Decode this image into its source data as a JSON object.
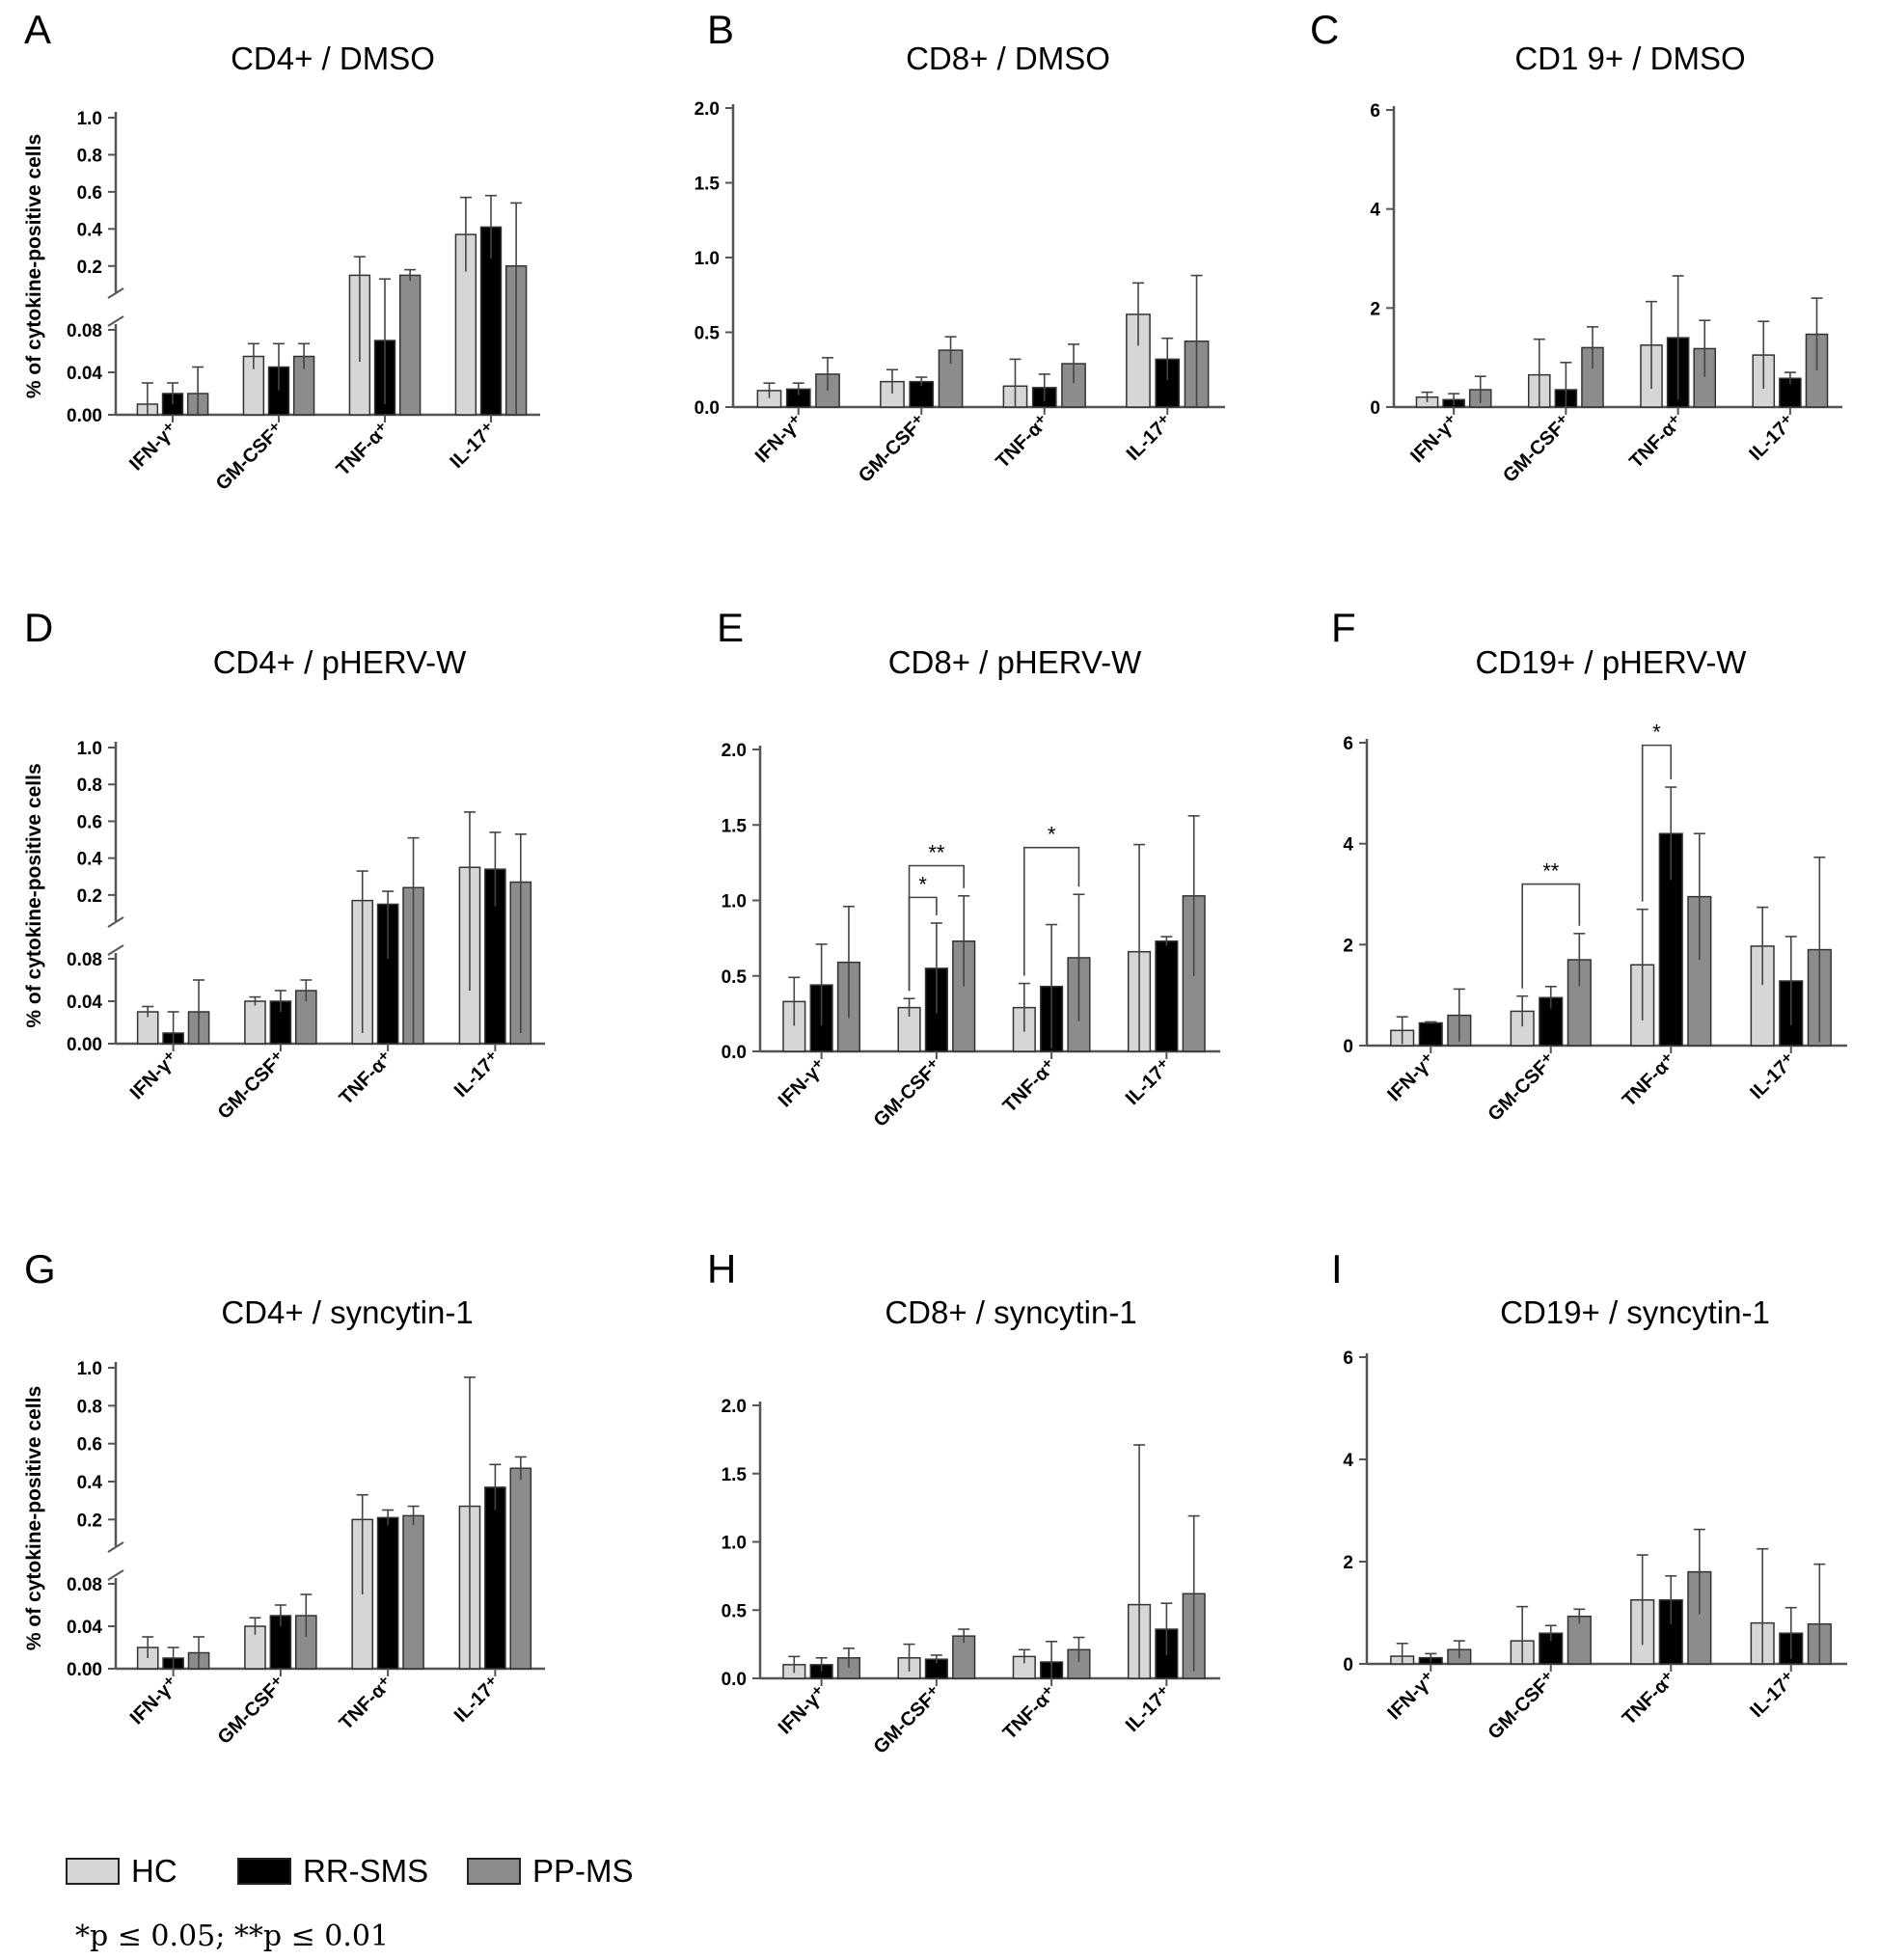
{
  "categories": [
    "IFN-γ⁺",
    "GM-CSF⁺",
    "TNF-α⁺",
    "IL-17⁺"
  ],
  "groups": [
    "HC",
    "RR-SMS",
    "PP-MS"
  ],
  "colors": {
    "HC": "#d6d6d6",
    "RR-SMS": "#000000",
    "PP-MS": "#8c8c8c"
  },
  "y_axis_label": "% of cytokine-positive cells",
  "legend": {
    "items": [
      "HC",
      "RR-SMS",
      "PP-MS"
    ]
  },
  "significance_note": "*p ≤ 0.05; **p ≤ 0.01",
  "chart_data": [
    {
      "panel": "A",
      "title": "CD4+ / DMSO",
      "type": "bar",
      "axis": "broken-cd4",
      "xticklabels": [
        "IFN-γ⁺",
        "GM-CSF⁺",
        "TNF-α⁺",
        "IL-17⁺"
      ],
      "series": [
        {
          "name": "HC",
          "values": [
            0.01,
            0.055,
            0.15,
            0.37
          ],
          "errors": [
            0.02,
            0.012,
            0.1,
            0.2
          ]
        },
        {
          "name": "RR-SMS",
          "values": [
            0.02,
            0.045,
            0.07,
            0.41
          ],
          "errors": [
            0.01,
            0.022,
            0.06,
            0.17
          ]
        },
        {
          "name": "PP-MS",
          "values": [
            0.02,
            0.055,
            0.15,
            0.2
          ],
          "errors": [
            0.025,
            0.012,
            0.03,
            0.34
          ]
        }
      ],
      "sig": []
    },
    {
      "panel": "B",
      "title": "CD8+ / DMSO",
      "type": "bar",
      "axis": "linear",
      "ylim": [
        0,
        2
      ],
      "yticks": [
        "0.0",
        "0.5",
        "1.0",
        "1.5",
        "2.0"
      ],
      "xticklabels": [
        "IFN-γ⁺",
        "GM-CSF⁺",
        "TNF-α⁺",
        "IL-17⁺"
      ],
      "series": [
        {
          "name": "HC",
          "values": [
            0.11,
            0.17,
            0.14,
            0.62
          ],
          "errors": [
            0.05,
            0.08,
            0.18,
            0.21
          ]
        },
        {
          "name": "RR-SMS",
          "values": [
            0.12,
            0.17,
            0.13,
            0.32
          ],
          "errors": [
            0.04,
            0.03,
            0.09,
            0.14
          ]
        },
        {
          "name": "PP-MS",
          "values": [
            0.22,
            0.38,
            0.29,
            0.44
          ],
          "errors": [
            0.11,
            0.09,
            0.13,
            0.44
          ]
        }
      ],
      "sig": []
    },
    {
      "panel": "C",
      "title": "CD1 9+ / DMSO",
      "type": "bar",
      "axis": "linear",
      "ylim": [
        0,
        6
      ],
      "yticks": [
        "0",
        "2",
        "4",
        "6"
      ],
      "xticklabels": [
        "IFN-γ⁺",
        "GM-CSF⁺",
        "TNF-α⁺",
        "IL-17⁺"
      ],
      "series": [
        {
          "name": "HC",
          "values": [
            0.2,
            0.65,
            1.25,
            1.05
          ],
          "errors": [
            0.1,
            0.72,
            0.88,
            0.68
          ]
        },
        {
          "name": "RR-SMS",
          "values": [
            0.15,
            0.35,
            1.4,
            0.58
          ],
          "errors": [
            0.12,
            0.55,
            1.25,
            0.12
          ]
        },
        {
          "name": "PP-MS",
          "values": [
            0.35,
            1.2,
            1.18,
            1.47
          ],
          "errors": [
            0.27,
            0.42,
            0.57,
            0.73
          ]
        }
      ],
      "sig": []
    },
    {
      "panel": "D",
      "title": "CD4+ / pHERV-W",
      "type": "bar",
      "axis": "broken-cd4",
      "xticklabels": [
        "IFN-γ⁺",
        "GM-CSF⁺",
        "TNF-α⁺",
        "IL-17⁺"
      ],
      "series": [
        {
          "name": "HC",
          "values": [
            0.03,
            0.04,
            0.17,
            0.35
          ],
          "errors": [
            0.005,
            0.004,
            0.16,
            0.3
          ]
        },
        {
          "name": "RR-SMS",
          "values": [
            0.01,
            0.04,
            0.15,
            0.34
          ],
          "errors": [
            0.02,
            0.01,
            0.07,
            0.2
          ]
        },
        {
          "name": "PP-MS",
          "values": [
            0.03,
            0.05,
            0.24,
            0.27
          ],
          "errors": [
            0.03,
            0.01,
            0.27,
            0.26
          ]
        }
      ],
      "sig": []
    },
    {
      "panel": "E",
      "title": "CD8+ / pHERV-W",
      "type": "bar",
      "axis": "linear",
      "ylim": [
        0,
        2
      ],
      "yticks": [
        "0.0",
        "0.5",
        "1.0",
        "1.5",
        "2.0"
      ],
      "xticklabels": [
        "IFN-γ⁺",
        "GM-CSF⁺",
        "TNF-α⁺",
        "IL-17⁺"
      ],
      "series": [
        {
          "name": "HC",
          "values": [
            0.33,
            0.29,
            0.29,
            0.66
          ],
          "errors": [
            0.16,
            0.06,
            0.16,
            0.71
          ]
        },
        {
          "name": "RR-SMS",
          "values": [
            0.44,
            0.55,
            0.43,
            0.73
          ],
          "errors": [
            0.27,
            0.3,
            0.41,
            0.03
          ]
        },
        {
          "name": "PP-MS",
          "values": [
            0.59,
            0.73,
            0.62,
            1.03
          ],
          "errors": [
            0.37,
            0.3,
            0.42,
            0.53
          ]
        }
      ],
      "sig": [
        {
          "label": "**",
          "cat": 1,
          "from": 0,
          "to": 2,
          "level": 1.23
        },
        {
          "label": "*",
          "cat": 1,
          "from": 0,
          "to": 1,
          "level": 1.02
        },
        {
          "label": "*",
          "cat": 2,
          "from": 0,
          "to": 2,
          "level": 1.35
        }
      ]
    },
    {
      "panel": "F",
      "title": "CD19+ / pHERV-W",
      "type": "bar",
      "axis": "linear",
      "ylim": [
        0,
        6
      ],
      "yticks": [
        "0",
        "2",
        "4",
        "6"
      ],
      "xticklabels": [
        "IFN-γ⁺",
        "GM-CSF⁺",
        "TNF-α⁺",
        "IL-17⁺"
      ],
      "series": [
        {
          "name": "HC",
          "values": [
            0.3,
            0.68,
            1.6,
            1.97
          ],
          "errors": [
            0.27,
            0.3,
            1.1,
            0.77
          ]
        },
        {
          "name": "RR-SMS",
          "values": [
            0.45,
            0.95,
            4.2,
            1.28
          ],
          "errors": [
            0.02,
            0.22,
            0.92,
            0.88
          ]
        },
        {
          "name": "PP-MS",
          "values": [
            0.6,
            1.7,
            2.95,
            1.9
          ],
          "errors": [
            0.52,
            0.52,
            1.25,
            1.83
          ]
        }
      ],
      "sig": [
        {
          "label": "**",
          "cat": 1,
          "from": 0,
          "to": 2,
          "level": 3.2
        },
        {
          "label": "*",
          "cat": 2,
          "from": 0,
          "to": 1,
          "level": 5.95
        }
      ]
    },
    {
      "panel": "G",
      "title": "CD4+ / syncytin-1",
      "type": "bar",
      "axis": "broken-cd4",
      "xticklabels": [
        "IFN-γ⁺",
        "GM-CSF⁺",
        "TNF-α⁺",
        "IL-17⁺"
      ],
      "series": [
        {
          "name": "HC",
          "values": [
            0.02,
            0.04,
            0.2,
            0.27
          ],
          "errors": [
            0.01,
            0.008,
            0.13,
            0.68
          ]
        },
        {
          "name": "RR-SMS",
          "values": [
            0.01,
            0.05,
            0.21,
            0.37
          ],
          "errors": [
            0.01,
            0.01,
            0.04,
            0.12
          ]
        },
        {
          "name": "PP-MS",
          "values": [
            0.015,
            0.05,
            0.22,
            0.47
          ],
          "errors": [
            0.015,
            0.02,
            0.05,
            0.06
          ]
        }
      ],
      "sig": []
    },
    {
      "panel": "H",
      "title": "CD8+ / syncytin-1",
      "type": "bar",
      "axis": "linear",
      "ylim": [
        0,
        2
      ],
      "yticks": [
        "0.0",
        "0.5",
        "1.0",
        "1.5",
        "2.0"
      ],
      "xticklabels": [
        "IFN-γ⁺",
        "GM-CSF⁺",
        "TNF-α⁺",
        "IL-17⁺"
      ],
      "series": [
        {
          "name": "HC",
          "values": [
            0.1,
            0.15,
            0.16,
            0.54
          ],
          "errors": [
            0.06,
            0.1,
            0.05,
            1.17
          ]
        },
        {
          "name": "RR-SMS",
          "values": [
            0.1,
            0.14,
            0.12,
            0.36
          ],
          "errors": [
            0.05,
            0.03,
            0.15,
            0.19
          ]
        },
        {
          "name": "PP-MS",
          "values": [
            0.15,
            0.31,
            0.21,
            0.62
          ],
          "errors": [
            0.07,
            0.05,
            0.09,
            0.57
          ]
        }
      ],
      "sig": []
    },
    {
      "panel": "I",
      "title": "CD19+ / syncytin-1",
      "type": "bar",
      "axis": "linear",
      "ylim": [
        0,
        6
      ],
      "yticks": [
        "0",
        "2",
        "4",
        "6"
      ],
      "xticklabels": [
        "IFN-γ⁺",
        "GM-CSF⁺",
        "TNF-α⁺",
        "IL-17⁺"
      ],
      "series": [
        {
          "name": "HC",
          "values": [
            0.15,
            0.45,
            1.25,
            0.8
          ],
          "errors": [
            0.25,
            0.67,
            0.88,
            1.45
          ]
        },
        {
          "name": "RR-SMS",
          "values": [
            0.12,
            0.6,
            1.25,
            0.6
          ],
          "errors": [
            0.08,
            0.15,
            0.47,
            0.5
          ]
        },
        {
          "name": "PP-MS",
          "values": [
            0.28,
            0.93,
            1.8,
            0.78
          ],
          "errors": [
            0.17,
            0.14,
            0.83,
            1.17
          ]
        }
      ],
      "sig": []
    }
  ]
}
